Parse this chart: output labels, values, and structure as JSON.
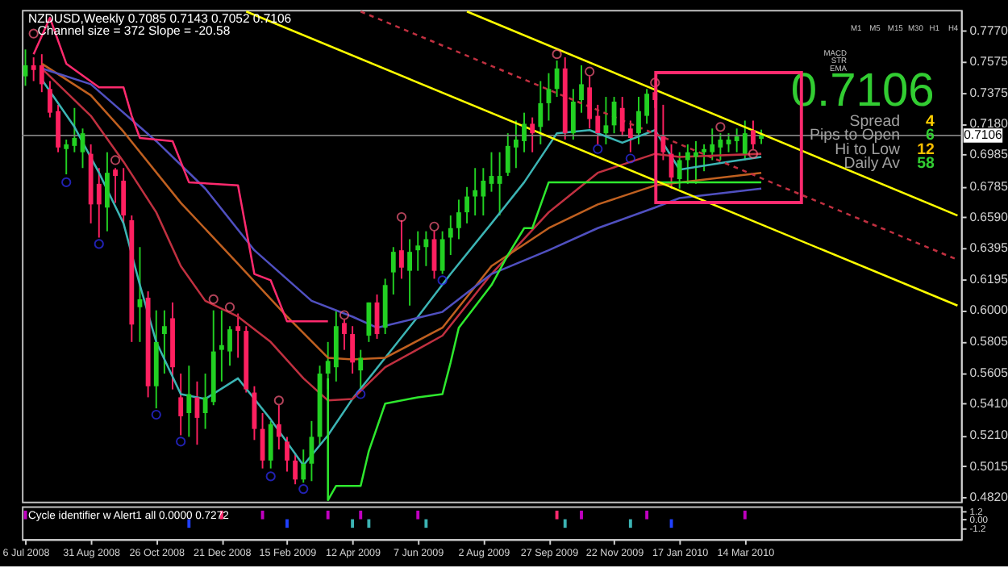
{
  "chart_data": [
    {
      "type": "candlestick",
      "title": "NZDUSD,Weekly  0.7085 0.7143 0.7052 0.7106",
      "subtitle": "Channel size = 372 Slope = -20.58",
      "x": [
        "2008-07-06",
        "2008-07-13",
        "2008-07-20",
        "2008-07-27",
        "2008-08-03",
        "2008-08-10",
        "2008-08-17",
        "2008-08-24",
        "2008-08-31",
        "2008-09-07",
        "2008-09-14",
        "2008-09-21",
        "2008-09-28",
        "2008-10-05",
        "2008-10-12",
        "2008-10-19",
        "2008-10-26",
        "2008-11-02",
        "2008-11-09",
        "2008-11-16",
        "2008-11-23",
        "2008-11-30",
        "2008-12-07",
        "2008-12-14",
        "2008-12-21",
        "2008-12-28",
        "2009-01-04",
        "2009-01-11",
        "2009-01-18",
        "2009-01-25",
        "2009-02-01",
        "2009-02-08",
        "2009-02-15",
        "2009-02-22",
        "2009-03-01",
        "2009-03-08",
        "2009-03-15",
        "2009-03-22",
        "2009-03-29",
        "2009-04-05",
        "2009-04-12",
        "2009-04-19",
        "2009-04-26",
        "2009-05-03",
        "2009-05-10",
        "2009-05-17",
        "2009-05-24",
        "2009-05-31",
        "2009-06-07",
        "2009-06-14",
        "2009-06-21",
        "2009-06-28",
        "2009-07-05",
        "2009-07-12",
        "2009-07-19",
        "2009-07-26",
        "2009-08-02",
        "2009-08-09",
        "2009-08-16",
        "2009-08-23",
        "2009-08-30",
        "2009-09-06",
        "2009-09-13",
        "2009-09-20",
        "2009-09-27",
        "2009-10-04",
        "2009-10-11",
        "2009-10-18",
        "2009-10-25",
        "2009-11-01",
        "2009-11-08",
        "2009-11-15",
        "2009-11-22",
        "2009-11-29",
        "2009-12-06",
        "2009-12-13",
        "2009-12-20",
        "2009-12-27",
        "2010-01-03",
        "2010-01-10",
        "2010-01-17",
        "2010-01-24",
        "2010-01-31",
        "2010-02-07",
        "2010-02-14",
        "2010-02-21",
        "2010-02-28",
        "2010-03-07",
        "2010-03-14",
        "2010-03-21",
        "2010-03-28"
      ],
      "ohlc": [
        [
          0.748,
          0.765,
          0.742,
          0.755
        ],
        [
          0.755,
          0.76,
          0.745,
          0.752
        ],
        [
          0.755,
          0.762,
          0.738,
          0.743
        ],
        [
          0.74,
          0.745,
          0.722,
          0.725
        ],
        [
          0.726,
          0.73,
          0.7,
          0.703
        ],
        [
          0.702,
          0.708,
          0.686,
          0.705
        ],
        [
          0.704,
          0.728,
          0.7,
          0.709
        ],
        [
          0.7,
          0.715,
          0.69,
          0.712
        ],
        [
          0.699,
          0.705,
          0.655,
          0.667
        ],
        [
          0.68,
          0.69,
          0.646,
          0.667
        ],
        [
          0.665,
          0.7,
          0.65,
          0.687
        ],
        [
          0.689,
          0.69,
          0.668,
          0.685
        ],
        [
          0.682,
          0.69,
          0.655,
          0.66
        ],
        [
          0.657,
          0.66,
          0.58,
          0.591
        ],
        [
          0.602,
          0.64,
          0.58,
          0.607
        ],
        [
          0.608,
          0.612,
          0.545,
          0.552
        ],
        [
          0.552,
          0.6,
          0.538,
          0.58
        ],
        [
          0.585,
          0.6,
          0.56,
          0.59
        ],
        [
          0.595,
          0.605,
          0.55,
          0.564
        ],
        [
          0.545,
          0.56,
          0.521,
          0.533
        ],
        [
          0.535,
          0.565,
          0.52,
          0.547
        ],
        [
          0.545,
          0.555,
          0.515,
          0.532
        ],
        [
          0.535,
          0.56,
          0.525,
          0.545
        ],
        [
          0.542,
          0.6,
          0.54,
          0.574
        ],
        [
          0.575,
          0.6,
          0.555,
          0.578
        ],
        [
          0.574,
          0.59,
          0.565,
          0.588
        ],
        [
          0.59,
          0.598,
          0.57,
          0.587
        ],
        [
          0.587,
          0.59,
          0.548,
          0.55
        ],
        [
          0.548,
          0.552,
          0.518,
          0.525
        ],
        [
          0.525,
          0.535,
          0.5,
          0.505
        ],
        [
          0.505,
          0.53,
          0.5,
          0.528
        ],
        [
          0.528,
          0.54,
          0.512,
          0.52
        ],
        [
          0.517,
          0.52,
          0.498,
          0.505
        ],
        [
          0.505,
          0.51,
          0.49,
          0.493
        ],
        [
          0.493,
          0.512,
          0.491,
          0.503
        ],
        [
          0.503,
          0.53,
          0.492,
          0.52
        ],
        [
          0.52,
          0.565,
          0.515,
          0.56
        ],
        [
          0.56,
          0.58,
          0.55,
          0.568
        ],
        [
          0.564,
          0.6,
          0.555,
          0.59
        ],
        [
          0.592,
          0.594,
          0.575,
          0.585
        ],
        [
          0.585,
          0.59,
          0.56,
          0.567
        ],
        [
          0.562,
          0.575,
          0.551,
          0.57
        ],
        [
          0.584,
          0.605,
          0.58,
          0.605
        ],
        [
          0.605,
          0.61,
          0.582,
          0.585
        ],
        [
          0.589,
          0.62,
          0.585,
          0.616
        ],
        [
          0.624,
          0.64,
          0.61,
          0.637
        ],
        [
          0.638,
          0.657,
          0.62,
          0.627
        ],
        [
          0.625,
          0.645,
          0.603,
          0.637
        ],
        [
          0.638,
          0.65,
          0.625,
          0.641
        ],
        [
          0.64,
          0.65,
          0.628,
          0.645
        ],
        [
          0.645,
          0.65,
          0.62,
          0.625
        ],
        [
          0.625,
          0.65,
          0.623,
          0.645
        ],
        [
          0.646,
          0.66,
          0.635,
          0.652
        ],
        [
          0.652,
          0.67,
          0.645,
          0.662
        ],
        [
          0.662,
          0.678,
          0.655,
          0.672
        ],
        [
          0.672,
          0.69,
          0.66,
          0.676
        ],
        [
          0.672,
          0.69,
          0.66,
          0.682
        ],
        [
          0.68,
          0.7,
          0.675,
          0.685
        ],
        [
          0.68,
          0.7,
          0.66,
          0.685
        ],
        [
          0.687,
          0.712,
          0.685,
          0.704
        ],
        [
          0.703,
          0.72,
          0.69,
          0.708
        ],
        [
          0.707,
          0.725,
          0.7,
          0.718
        ],
        [
          0.718,
          0.722,
          0.7,
          0.712
        ],
        [
          0.716,
          0.745,
          0.705,
          0.731
        ],
        [
          0.731,
          0.75,
          0.72,
          0.74
        ],
        [
          0.74,
          0.758,
          0.735,
          0.753
        ],
        [
          0.753,
          0.76,
          0.708,
          0.712
        ],
        [
          0.712,
          0.74,
          0.708,
          0.732
        ],
        [
          0.733,
          0.755,
          0.725,
          0.743
        ],
        [
          0.741,
          0.748,
          0.715,
          0.721
        ],
        [
          0.723,
          0.73,
          0.705,
          0.712
        ],
        [
          0.712,
          0.735,
          0.705,
          0.717
        ],
        [
          0.717,
          0.735,
          0.712,
          0.732
        ],
        [
          0.728,
          0.735,
          0.71,
          0.713
        ],
        [
          0.715,
          0.72,
          0.7,
          0.709
        ],
        [
          0.712,
          0.735,
          0.705,
          0.726
        ],
        [
          0.723,
          0.74,
          0.718,
          0.737
        ],
        [
          0.738,
          0.741,
          0.728,
          0.733
        ],
        [
          0.71,
          0.73,
          0.695,
          0.7
        ],
        [
          0.699,
          0.705,
          0.677,
          0.684
        ],
        [
          0.683,
          0.7,
          0.677,
          0.695
        ],
        [
          0.695,
          0.705,
          0.68,
          0.7
        ],
        [
          0.697,
          0.707,
          0.68,
          0.7
        ],
        [
          0.7,
          0.705,
          0.688,
          0.702
        ],
        [
          0.7,
          0.715,
          0.695,
          0.705
        ],
        [
          0.703,
          0.712,
          0.695,
          0.708
        ],
        [
          0.705,
          0.712,
          0.7,
          0.708
        ],
        [
          0.707,
          0.715,
          0.7,
          0.71
        ],
        [
          0.699,
          0.72,
          0.695,
          0.712
        ],
        [
          0.714,
          0.72,
          0.702,
          0.705
        ],
        [
          0.7085,
          0.7143,
          0.7052,
          0.7106
        ]
      ],
      "colors": [
        "#22d022",
        "#ff2060",
        "#ff2060",
        "#ff2060",
        "#ff2060",
        "#22d022",
        "#22d022",
        "#22d022",
        "#ff2060",
        "#ff2060",
        "#22d022",
        "#ff2060",
        "#ff2060",
        "#ff2060",
        "#22d022",
        "#ff2060",
        "#22d022",
        "#22d022",
        "#ff2060",
        "#ff2060",
        "#22d022",
        "#ff2060",
        "#22d022",
        "#22d022",
        "#22d022",
        "#22d022",
        "#ff2060",
        "#ff2060",
        "#ff2060",
        "#ff2060",
        "#22d022",
        "#ff2060",
        "#ff2060",
        "#ff2060",
        "#22d022",
        "#22d022",
        "#22d022",
        "#22d022",
        "#22d022",
        "#ff2060",
        "#ff2060",
        "#22d022",
        "#22d022",
        "#ff2060",
        "#22d022",
        "#22d022",
        "#ff2060",
        "#22d022",
        "#22d022",
        "#22d022",
        "#ff2060",
        "#22d022",
        "#22d022",
        "#22d022",
        "#22d022",
        "#22d022",
        "#22d022",
        "#22d022",
        "#22d022",
        "#22d022",
        "#22d022",
        "#22d022",
        "#ff2060",
        "#22d022",
        "#22d022",
        "#22d022",
        "#ff2060",
        "#22d022",
        "#22d022",
        "#ff2060",
        "#ff2060",
        "#22d022",
        "#22d022",
        "#ff2060",
        "#ff2060",
        "#22d022",
        "#22d022",
        "#ff2060",
        "#ff2060",
        "#ff2060",
        "#22d022",
        "#22d022",
        "#22d022",
        "#22d022",
        "#22d022",
        "#22d022",
        "#22d022",
        "#22d022",
        "#22d022",
        "#ff2060",
        "#22d022"
      ],
      "series": [
        {
          "type": "line",
          "color": "#3cb4b4",
          "x": [
            "2008-07-20",
            "2008-08-17",
            "2008-09-07",
            "2008-09-28",
            "2008-10-12",
            "2008-10-26",
            "2008-11-16",
            "2008-12-07",
            "2009-01-04",
            "2009-02-01",
            "2009-03-01",
            "2009-03-22",
            "2009-04-12",
            "2009-05-10",
            "2009-06-07",
            "2009-07-05",
            "2009-08-09",
            "2009-09-06",
            "2009-10-04",
            "2009-11-01",
            "2009-11-29",
            "2009-12-27",
            "2010-01-17",
            "2010-02-28",
            "2010-03-28"
          ],
          "values": [
            0.746,
            0.716,
            0.687,
            0.655,
            0.616,
            0.58,
            0.547,
            0.544,
            0.557,
            0.531,
            0.502,
            0.521,
            0.544,
            0.57,
            0.596,
            0.623,
            0.655,
            0.681,
            0.712,
            0.714,
            0.706,
            0.714,
            0.689,
            0.694,
            0.697
          ]
        },
        {
          "type": "line",
          "color": "#c03040",
          "x": [
            "2008-07-20",
            "2008-08-31",
            "2008-09-28",
            "2008-10-26",
            "2008-11-16",
            "2008-12-07",
            "2009-01-04",
            "2009-02-01",
            "2009-03-01",
            "2009-03-22",
            "2009-04-12",
            "2009-05-10",
            "2009-06-28",
            "2009-08-09",
            "2009-09-27",
            "2009-11-08",
            "2009-12-27",
            "2010-01-17",
            "2010-03-28"
          ],
          "values": [
            0.753,
            0.723,
            0.694,
            0.662,
            0.628,
            0.606,
            0.596,
            0.58,
            0.557,
            0.543,
            0.544,
            0.564,
            0.584,
            0.623,
            0.662,
            0.687,
            0.699,
            0.697,
            0.699
          ]
        },
        {
          "type": "line",
          "color": "#c06020",
          "x": [
            "2008-07-20",
            "2008-08-31",
            "2008-09-28",
            "2008-11-16",
            "2008-12-28",
            "2009-02-15",
            "2009-03-22",
            "2009-04-12",
            "2009-05-10",
            "2009-06-28",
            "2009-08-09",
            "2009-09-27",
            "2009-11-08",
            "2009-12-27",
            "2010-03-28"
          ],
          "values": [
            0.756,
            0.736,
            0.713,
            0.668,
            0.635,
            0.596,
            0.57,
            0.569,
            0.57,
            0.589,
            0.628,
            0.652,
            0.667,
            0.679,
            0.687
          ]
        },
        {
          "type": "line",
          "color": "#5050c0",
          "x": [
            "2008-07-20",
            "2008-08-31",
            "2008-10-26",
            "2008-12-07",
            "2009-01-18",
            "2009-03-08",
            "2009-04-12",
            "2009-05-03",
            "2009-06-28",
            "2009-08-09",
            "2009-09-27",
            "2009-11-08",
            "2009-12-27",
            "2010-01-17",
            "2010-03-28"
          ],
          "values": [
            0.753,
            0.743,
            0.707,
            0.677,
            0.638,
            0.606,
            0.596,
            0.589,
            0.599,
            0.623,
            0.638,
            0.652,
            0.665,
            0.671,
            0.677
          ]
        },
        {
          "type": "line",
          "color": "#ff2a6e",
          "x": [
            "2008-07-13",
            "2008-07-27",
            "2008-08-10",
            "2008-09-07",
            "2008-09-28",
            "2008-10-05",
            "2008-10-12",
            "2008-11-09",
            "2008-11-23",
            "2009-01-04",
            "2009-01-18",
            "2009-02-01",
            "2009-02-15",
            "2009-03-22"
          ],
          "values": [
            0.762,
            0.785,
            0.756,
            0.741,
            0.741,
            0.723,
            0.709,
            0.707,
            0.681,
            0.679,
            0.623,
            0.619,
            0.593,
            0.593
          ]
        },
        {
          "type": "line",
          "color": "#2ee82e",
          "x": [
            "2009-03-22",
            "2009-03-22",
            "2009-03-29",
            "2009-04-19",
            "2009-04-26",
            "2009-05-10",
            "2009-06-07",
            "2009-06-28",
            "2009-07-05",
            "2009-07-12",
            "2009-08-09",
            "2009-08-23",
            "2009-09-06",
            "2009-09-13",
            "2009-09-27",
            "2010-03-28"
          ],
          "values": [
            0.557,
            0.48,
            0.489,
            0.489,
            0.511,
            0.541,
            0.545,
            0.547,
            0.567,
            0.589,
            0.616,
            0.635,
            0.652,
            0.652,
            0.681,
            0.681
          ]
        },
        {
          "type": "line",
          "color": "#ffff00",
          "x": [
            "2009-01-11",
            "2010-09-12"
          ],
          "values": [
            0.789,
            0.603
          ]
        },
        {
          "type": "line",
          "color": "#ffff00",
          "x": [
            "2009-07-19",
            "2010-09-12"
          ],
          "values": [
            0.789,
            0.66
          ]
        },
        {
          "type": "line",
          "color": "#c03040",
          "line_style": "dashed",
          "x": [
            "2009-04-19",
            "2010-09-12"
          ],
          "values": [
            0.789,
            0.632
          ]
        },
        {
          "type": "scatter",
          "color": "#ff6080",
          "marker": "circle",
          "x": [
            "2008-07-13",
            "2008-09-21",
            "2008-12-14",
            "2008-12-28",
            "2009-02-08",
            "2009-04-05",
            "2009-05-24",
            "2009-06-21",
            "2009-10-04",
            "2009-11-01",
            "2009-12-27",
            "2010-02-21",
            "2010-03-21"
          ],
          "values": [
            0.775,
            0.695,
            0.607,
            0.602,
            0.543,
            0.597,
            0.659,
            0.653,
            0.762,
            0.751,
            0.744,
            0.716,
            0.699
          ]
        },
        {
          "type": "scatter",
          "color": "#3030ff",
          "marker": "circle",
          "x": [
            "2008-08-10",
            "2008-09-07",
            "2008-10-26",
            "2008-11-16",
            "2009-02-01",
            "2009-03-01",
            "2009-04-19",
            "2009-06-28",
            "2009-11-08",
            "2009-12-06"
          ],
          "values": [
            0.681,
            0.642,
            0.534,
            0.517,
            0.495,
            0.487,
            0.547,
            0.619,
            0.702,
            0.696
          ]
        }
      ],
      "ref_lines": [
        {
          "axis": "y",
          "value": 0.7106,
          "label": "0.7106",
          "color": "#808080"
        }
      ],
      "annotations": [
        "0.7106",
        "Spread",
        "4",
        "Pips to Open",
        "6",
        "Hi to Low",
        "12",
        "Daily Av",
        "58",
        "M1",
        "M5",
        "M15",
        "M30",
        "H1",
        "H4",
        "MACD",
        "STR",
        "EMA"
      ],
      "xlim": [
        "2008-07-03",
        "2010-09-15"
      ],
      "ylim": [
        0.479,
        0.79
      ],
      "yticks": [
        {
          "value": 0.777,
          "label": "0.7770"
        },
        {
          "value": 0.7575,
          "label": "0.7575"
        },
        {
          "value": 0.7375,
          "label": "0.7375"
        },
        {
          "value": 0.718,
          "label": "0.7180"
        },
        {
          "value": 0.6985,
          "label": "0.6985"
        },
        {
          "value": 0.6785,
          "label": "0.6785"
        },
        {
          "value": 0.659,
          "label": "0.6590"
        },
        {
          "value": 0.6395,
          "label": "0.6395"
        },
        {
          "value": 0.6195,
          "label": "0.6195"
        },
        {
          "value": 0.6,
          "label": "0.6000"
        },
        {
          "value": 0.5805,
          "label": "0.5805"
        },
        {
          "value": 0.5605,
          "label": "0.5605"
        },
        {
          "value": 0.541,
          "label": "0.5410"
        },
        {
          "value": 0.521,
          "label": "0.5210"
        },
        {
          "value": 0.5015,
          "label": "0.5015"
        },
        {
          "value": 0.482,
          "label": "0.4820"
        }
      ],
      "tick_labels": "y",
      "grid": false
    },
    {
      "type": "bar",
      "title": "Cycle identifier w Alert1 all 0.0000 0.7272",
      "x": [
        "2008-07-06",
        "2008-11-23",
        "2008-12-21",
        "2009-01-25",
        "2009-02-15",
        "2009-03-22",
        "2009-04-12",
        "2009-04-19",
        "2009-04-26",
        "2009-06-07",
        "2009-06-14",
        "2009-10-04",
        "2009-10-11",
        "2009-10-25",
        "2009-12-06",
        "2009-12-20",
        "2010-01-10",
        "2010-03-14"
      ],
      "values": [
        1.2,
        -1.2,
        1.2,
        1.2,
        -1.2,
        1.2,
        -1.2,
        1.2,
        -1.2,
        1.2,
        -1.2,
        1.2,
        -1.2,
        1.2,
        -1.2,
        1.2,
        -1.2,
        1.2
      ],
      "colors": [
        "#c000c0",
        "#2040ff",
        "#ff2a6e",
        "#c000c0",
        "#2040ff",
        "#c000c0",
        "#3cb4b4",
        "#c000c0",
        "#3cb4b4",
        "#c000c0",
        "#3cb4b4",
        "#ff2a6e",
        "#3cb4b4",
        "#c000c0",
        "#3cb4b4",
        "#c000c0",
        "#2040ff",
        "#c000c0"
      ],
      "xlim": [
        "2008-07-03",
        "2010-09-15"
      ],
      "xticks": [
        {
          "value": "2008-07-06",
          "label": "6 Jul 2008"
        },
        {
          "value": "2008-08-31",
          "label": "31 Aug 2008"
        },
        {
          "value": "2008-10-26",
          "label": "26 Oct 2008"
        },
        {
          "value": "2008-12-21",
          "label": "21 Dec 2008"
        },
        {
          "value": "2009-02-15",
          "label": "15 Feb 2009"
        },
        {
          "value": "2009-04-12",
          "label": "12 Apr 2009"
        },
        {
          "value": "2009-06-07",
          "label": "7 Jun 2009"
        },
        {
          "value": "2009-08-02",
          "label": "2 Aug 2009"
        },
        {
          "value": "2009-09-27",
          "label": "27 Sep 2009"
        },
        {
          "value": "2009-11-22",
          "label": "22 Nov 2009"
        },
        {
          "value": "2010-01-17",
          "label": "17 Jan 2010"
        },
        {
          "value": "2010-03-14",
          "label": "14 Mar 2010"
        }
      ],
      "ylim": [
        -2.8,
        1.8
      ],
      "yticks": [
        1.2,
        {
          "value": 0,
          "label": "0.00"
        },
        -1.2
      ],
      "grid": false
    }
  ]
}
